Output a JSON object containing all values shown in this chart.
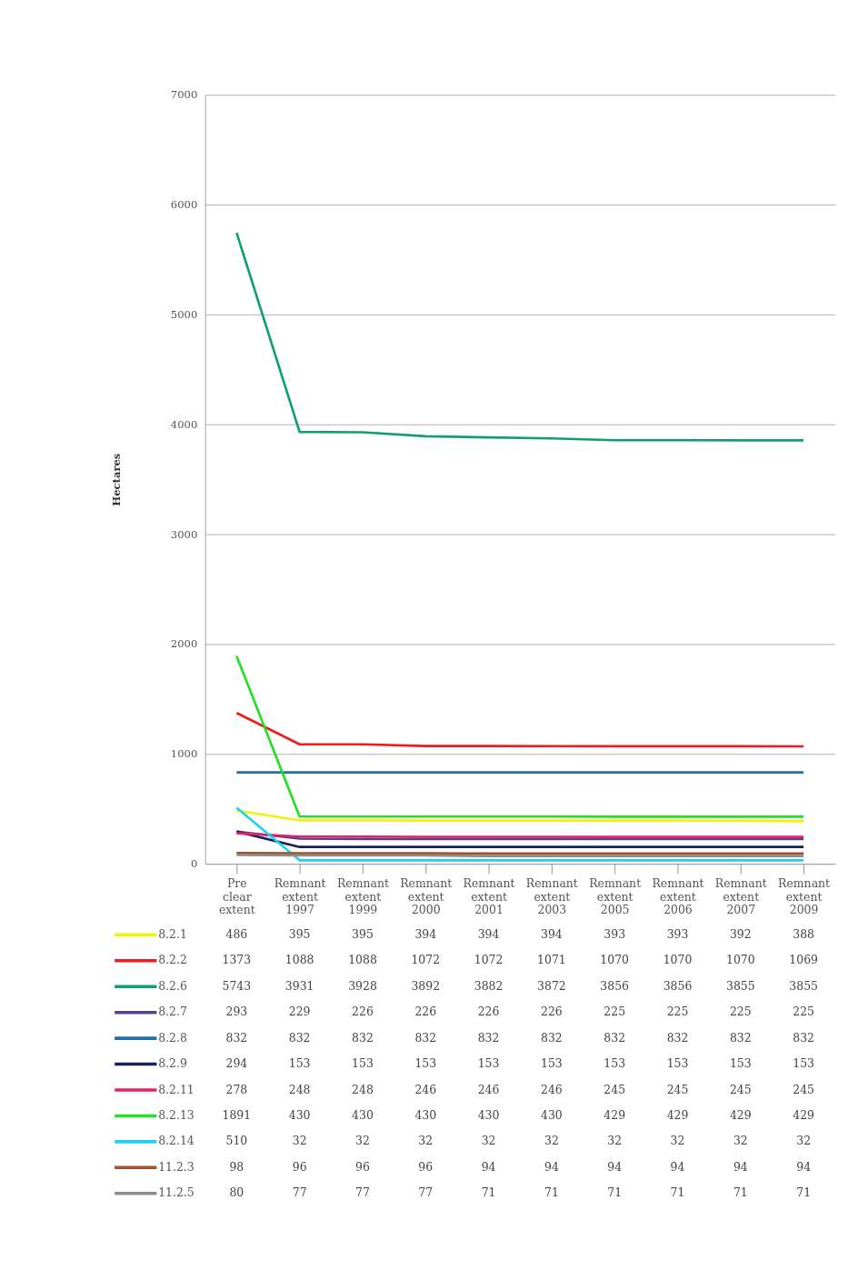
{
  "chart_data": {
    "type": "line",
    "ylabel": "Hectares",
    "categories": [
      "Pre clear extent",
      "Remnant extent 1997",
      "Remnant extent 1999",
      "Remnant extent 2000",
      "Remnant extent 2001",
      "Remnant extent 2003",
      "Remnant extent 2005",
      "Remnant extent 2006",
      "Remnant extent 2007",
      "Remnant extent 2009"
    ],
    "series": [
      {
        "name": "8.2.1",
        "color": "#f2f20a",
        "values": [
          486,
          395,
          395,
          394,
          394,
          394,
          393,
          393,
          392,
          388
        ]
      },
      {
        "name": "8.2.2",
        "color": "#ee1c1c",
        "values": [
          1373,
          1088,
          1088,
          1072,
          1072,
          1071,
          1070,
          1070,
          1070,
          1069
        ]
      },
      {
        "name": "8.2.6",
        "color": "#10a070",
        "values": [
          5743,
          3931,
          3928,
          3892,
          3882,
          3872,
          3856,
          3856,
          3855,
          3855
        ]
      },
      {
        "name": "8.2.7",
        "color": "#54408e",
        "values": [
          293,
          229,
          226,
          226,
          226,
          226,
          225,
          225,
          225,
          225
        ]
      },
      {
        "name": "8.2.8",
        "color": "#1f6fa8",
        "values": [
          832,
          832,
          832,
          832,
          832,
          832,
          832,
          832,
          832,
          832
        ]
      },
      {
        "name": "8.2.9",
        "color": "#1a1f5e",
        "values": [
          294,
          153,
          153,
          153,
          153,
          153,
          153,
          153,
          153,
          153
        ]
      },
      {
        "name": "8.2.11",
        "color": "#e8206a",
        "values": [
          278,
          248,
          248,
          246,
          246,
          246,
          245,
          245,
          245,
          245
        ]
      },
      {
        "name": "8.2.13",
        "color": "#22e022",
        "values": [
          1891,
          430,
          430,
          430,
          430,
          430,
          429,
          429,
          429,
          429
        ]
      },
      {
        "name": "8.2.14",
        "color": "#20d0f0",
        "values": [
          510,
          32,
          32,
          32,
          32,
          32,
          32,
          32,
          32,
          32
        ]
      },
      {
        "name": "11.2.3",
        "color": "#a0522d",
        "values": [
          98,
          96,
          96,
          96,
          94,
          94,
          94,
          94,
          94,
          94
        ]
      },
      {
        "name": "11.2.5",
        "color": "#8c8c8c",
        "values": [
          80,
          77,
          77,
          77,
          71,
          71,
          71,
          71,
          71,
          71
        ]
      }
    ],
    "ylim": [
      0,
      7000
    ],
    "yticks": [
      0,
      1000,
      2000,
      3000,
      4000,
      5000,
      6000,
      7000
    ],
    "grid": "y",
    "legend": "bottom",
    "data_labels": true,
    "marker": "none",
    "line_style": "solid"
  }
}
